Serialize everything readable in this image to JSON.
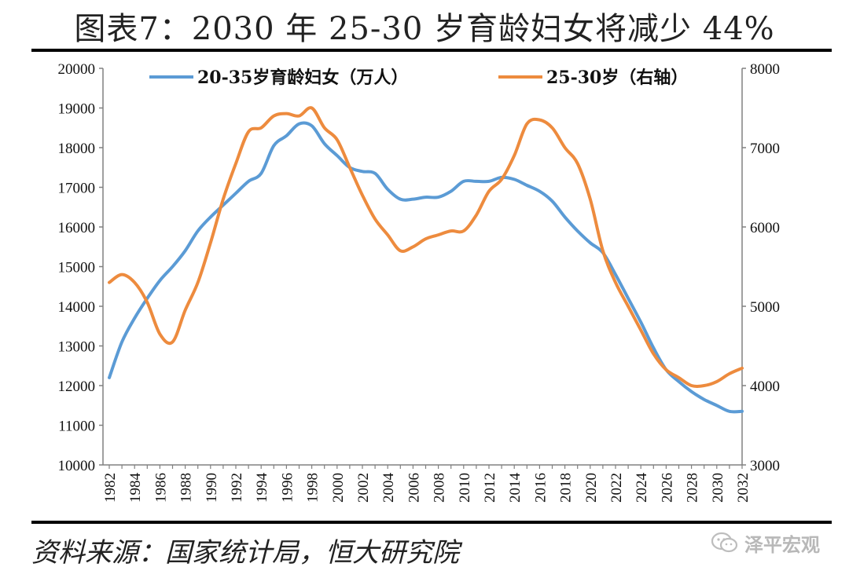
{
  "title": "图表7：2030 年 25-30 岁育龄妇女将减少 44%",
  "source": "资料来源：国家统计局，恒大研究院",
  "watermark": "泽平宏观",
  "watermark_icon": "wechat-icon",
  "colors": {
    "series1": "#5b9bd5",
    "series2": "#ed8b3e",
    "axis": "#808080",
    "rule": "#000000"
  },
  "chart_data": {
    "type": "line",
    "title": "图表7：2030 年 25-30 岁育龄妇女将减少 44%",
    "x": [
      1982,
      1983,
      1984,
      1985,
      1986,
      1987,
      1988,
      1989,
      1990,
      1991,
      1992,
      1993,
      1994,
      1995,
      1996,
      1997,
      1998,
      1999,
      2000,
      2001,
      2002,
      2003,
      2004,
      2005,
      2006,
      2007,
      2008,
      2009,
      2010,
      2011,
      2012,
      2013,
      2014,
      2015,
      2016,
      2017,
      2018,
      2019,
      2020,
      2021,
      2022,
      2023,
      2024,
      2025,
      2026,
      2027,
      2028,
      2029,
      2030,
      2031,
      2032
    ],
    "x_tick_labels": [
      "1982",
      "1984",
      "1986",
      "1988",
      "1990",
      "1992",
      "1994",
      "1996",
      "1998",
      "2000",
      "2002",
      "2004",
      "2006",
      "2008",
      "2010",
      "2012",
      "2014",
      "2016",
      "2018",
      "2020",
      "2022",
      "2024",
      "2026",
      "2028",
      "2030",
      "2032"
    ],
    "left_axis": {
      "ylim": [
        10000,
        20000
      ],
      "ticks": [
        "10000",
        "11000",
        "12000",
        "13000",
        "14000",
        "15000",
        "16000",
        "17000",
        "18000",
        "19000",
        "20000"
      ]
    },
    "right_axis": {
      "ylim": [
        3000,
        8000
      ],
      "ticks": [
        "3000",
        "4000",
        "5000",
        "6000",
        "7000",
        "8000"
      ]
    },
    "legend_placement": "top",
    "series": [
      {
        "name": "20-35岁育龄妇女（万人）",
        "axis": "left",
        "values": [
          12200,
          13100,
          13700,
          14200,
          14650,
          15000,
          15400,
          15900,
          16250,
          16550,
          16850,
          17150,
          17350,
          18050,
          18300,
          18600,
          18550,
          18100,
          17800,
          17500,
          17400,
          17350,
          16950,
          16700,
          16700,
          16750,
          16750,
          16900,
          17150,
          17150,
          17150,
          17250,
          17200,
          17050,
          16900,
          16650,
          16250,
          15900,
          15600,
          15350,
          14800,
          14200,
          13600,
          12950,
          12400,
          12100,
          11850,
          11650,
          11500,
          11350,
          11350
        ]
      },
      {
        "name": "25-30岁（右轴）",
        "axis": "right",
        "values": [
          5300,
          5400,
          5300,
          5050,
          4650,
          4550,
          4950,
          5300,
          5800,
          6350,
          6800,
          7200,
          7250,
          7400,
          7430,
          7400,
          7500,
          7250,
          7100,
          6750,
          6400,
          6100,
          5900,
          5700,
          5750,
          5850,
          5900,
          5950,
          5950,
          6150,
          6450,
          6600,
          6900,
          7300,
          7350,
          7250,
          7000,
          6800,
          6350,
          5700,
          5300,
          5000,
          4700,
          4400,
          4200,
          4100,
          4000,
          4000,
          4050,
          4150,
          4220
        ]
      }
    ]
  }
}
